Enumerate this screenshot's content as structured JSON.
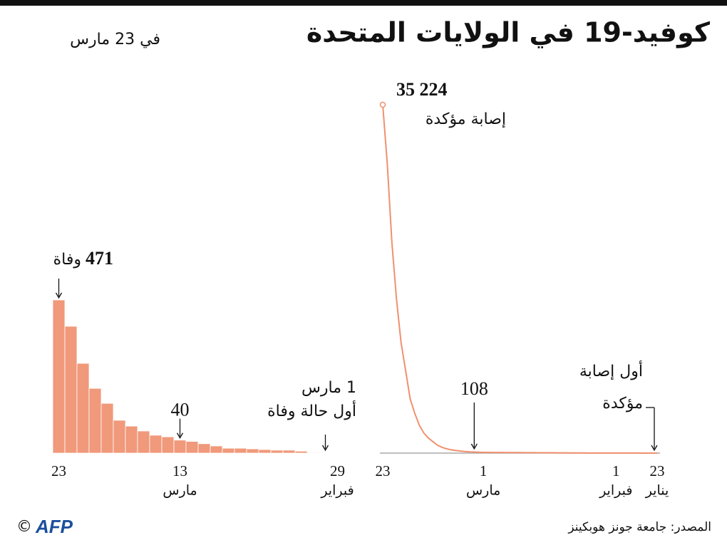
{
  "title": "كوفيد-19 في الولايات المتحدة",
  "subtitle": "في 23 مارس",
  "source": "المصدر: جامعة جونز هوبكينز",
  "credit": "©",
  "logo": "AFP",
  "chart_data": [
    {
      "type": "bar",
      "color": "#f0997b",
      "categories": [
        "23",
        null,
        null,
        null,
        null,
        null,
        null,
        null,
        null,
        null,
        "13",
        null,
        null,
        null,
        null,
        null,
        null,
        null,
        null,
        null,
        null,
        null,
        null,
        "29"
      ],
      "category_months": [
        null,
        null,
        null,
        null,
        null,
        null,
        null,
        null,
        null,
        null,
        "مارس",
        null,
        null,
        null,
        null,
        null,
        null,
        null,
        null,
        null,
        null,
        null,
        null,
        "فبراير"
      ],
      "values": [
        471,
        390,
        276,
        199,
        153,
        101,
        83,
        68,
        55,
        50,
        40,
        36,
        29,
        22,
        15,
        15,
        13,
        11,
        9,
        9,
        6,
        2,
        1,
        1
      ],
      "value_labels": [
        "471",
        null,
        null,
        null,
        null,
        null,
        null,
        null,
        null,
        null,
        "40",
        null,
        null,
        null,
        null,
        null,
        null,
        null,
        null,
        null,
        null,
        null,
        null,
        null
      ],
      "value_unit": "وفاة",
      "annotation": [
        "1 مارس",
        "أول حالة وفاة"
      ]
    },
    {
      "type": "line",
      "color": "#f0906f",
      "categories": [
        "23",
        null,
        null,
        null,
        null,
        null,
        null,
        null,
        null,
        null,
        null,
        null,
        null,
        null,
        null,
        null,
        null,
        null,
        null,
        null,
        null,
        null,
        "1",
        null,
        null,
        null,
        null,
        null,
        null,
        null,
        null,
        null,
        null,
        null,
        null,
        null,
        null,
        null,
        null,
        null,
        null,
        null,
        null,
        null,
        null,
        null,
        null,
        null,
        null,
        null,
        null,
        "1",
        null,
        null,
        null,
        null,
        null,
        null,
        null,
        null,
        "23"
      ],
      "category_months": [
        null,
        null,
        null,
        null,
        null,
        null,
        null,
        null,
        null,
        null,
        null,
        null,
        null,
        null,
        null,
        null,
        null,
        null,
        null,
        null,
        null,
        null,
        "مارس",
        null,
        null,
        null,
        null,
        null,
        null,
        null,
        null,
        null,
        null,
        null,
        null,
        null,
        null,
        null,
        null,
        null,
        null,
        null,
        null,
        null,
        null,
        null,
        null,
        null,
        null,
        null,
        null,
        "فبراير",
        null,
        null,
        null,
        null,
        null,
        null,
        null,
        null,
        "يناير"
      ],
      "values": [
        35224,
        29200,
        21300,
        15600,
        11200,
        8350,
        5470,
        4030,
        2810,
        2020,
        1510,
        1150,
        790,
        580,
        430,
        330,
        260,
        210,
        160,
        125,
        108,
        90,
        75,
        70,
        66,
        62,
        60,
        58,
        56,
        53,
        50,
        47,
        45,
        43,
        40,
        38,
        35,
        33,
        30,
        28,
        25,
        22,
        20,
        18,
        15,
        13,
        12,
        11,
        10,
        8,
        8,
        7,
        6,
        6,
        5,
        5,
        5,
        3,
        2,
        1,
        1
      ],
      "value_labels": [
        "35 224",
        null,
        null,
        null,
        null,
        null,
        null,
        null,
        null,
        null,
        null,
        null,
        null,
        null,
        null,
        null,
        null,
        null,
        null,
        null,
        "108",
        null,
        null,
        null,
        null,
        null,
        null,
        null,
        null,
        null,
        null,
        null,
        null,
        null,
        null,
        null,
        null,
        null,
        null,
        null,
        null,
        null,
        null,
        null,
        null,
        null,
        null,
        null,
        null,
        null,
        null,
        null,
        null,
        null,
        null,
        null,
        null,
        null,
        null,
        null,
        null
      ],
      "value_unit": "إصابة مؤكدة",
      "annotation": [
        "أول إصابة",
        "مؤكدة"
      ]
    }
  ]
}
